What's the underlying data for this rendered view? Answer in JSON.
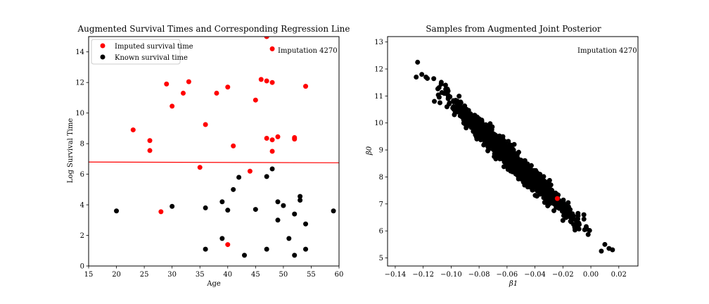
{
  "chart_data": [
    {
      "type": "scatter",
      "title": "Augmented Survival Times and Corresponding Regression Line",
      "xlabel": "Age",
      "ylabel": "Log Survival Time",
      "xlim": [
        15,
        60
      ],
      "ylim": [
        0,
        15
      ],
      "xticks": [
        15,
        20,
        25,
        30,
        35,
        40,
        45,
        50,
        55,
        60
      ],
      "yticks": [
        0,
        2,
        4,
        6,
        8,
        10,
        12,
        14
      ],
      "annotation": "Imputation 4270",
      "legend_position": "upper-left",
      "series": [
        {
          "name": "Imputed survival time",
          "color": "#ff0000",
          "points": [
            [
              23,
              8.9
            ],
            [
              26,
              8.2
            ],
            [
              26,
              7.55
            ],
            [
              28,
              3.55
            ],
            [
              29,
              11.9
            ],
            [
              30,
              10.45
            ],
            [
              32,
              11.3
            ],
            [
              33,
              12.05
            ],
            [
              35,
              6.45
            ],
            [
              36,
              9.25
            ],
            [
              38,
              11.3
            ],
            [
              40,
              11.7
            ],
            [
              40,
              1.4
            ],
            [
              41,
              7.85
            ],
            [
              44,
              6.2
            ],
            [
              45,
              10.85
            ],
            [
              46,
              12.2
            ],
            [
              47,
              12.1
            ],
            [
              47,
              8.35
            ],
            [
              47,
              15.0
            ],
            [
              48,
              12.0
            ],
            [
              48,
              8.25
            ],
            [
              48,
              7.5
            ],
            [
              48,
              14.2
            ],
            [
              49,
              8.45
            ],
            [
              52,
              8.4
            ],
            [
              52,
              8.3
            ],
            [
              54,
              11.75
            ]
          ]
        },
        {
          "name": "Known survival time",
          "color": "#000000",
          "points": [
            [
              20,
              3.6
            ],
            [
              30,
              3.9
            ],
            [
              36,
              3.8
            ],
            [
              36,
              1.1
            ],
            [
              39,
              4.2
            ],
            [
              39,
              1.8
            ],
            [
              40,
              3.65
            ],
            [
              41,
              5.0
            ],
            [
              42,
              5.8
            ],
            [
              43,
              0.7
            ],
            [
              45,
              3.7
            ],
            [
              47,
              5.85
            ],
            [
              47,
              1.1
            ],
            [
              48,
              6.35
            ],
            [
              49,
              4.2
            ],
            [
              49,
              3.0
            ],
            [
              50,
              3.95
            ],
            [
              51,
              1.8
            ],
            [
              52,
              3.4
            ],
            [
              52,
              0.7
            ],
            [
              53,
              4.55
            ],
            [
              53,
              4.3
            ],
            [
              54,
              2.75
            ],
            [
              54,
              1.1
            ],
            [
              59,
              3.6
            ]
          ]
        }
      ],
      "regression_line": {
        "color": "#ff0000",
        "x": [
          15,
          60
        ],
        "y": [
          6.8,
          6.75
        ]
      }
    },
    {
      "type": "scatter",
      "title": "Samples from Augmented Joint Posterior",
      "xlabel": "β1",
      "ylabel": "β0",
      "xlim": [
        -0.1455,
        0.0337
      ],
      "ylim": [
        4.7,
        13.2
      ],
      "xticks": [
        -0.14,
        -0.12,
        -0.1,
        -0.08,
        -0.06,
        -0.04,
        -0.02,
        0.0,
        0.02
      ],
      "xtick_labels": [
        "−0.14",
        "−0.12",
        "−0.10",
        "−0.08",
        "−0.06",
        "−0.04",
        "−0.02",
        "0.00",
        "0.02"
      ],
      "yticks": [
        5,
        6,
        7,
        8,
        9,
        10,
        11,
        12,
        13
      ],
      "annotation": "Imputation 4270",
      "samples": {
        "color": "#000000",
        "count": 1500,
        "band": {
          "x_from": -0.12,
          "x_to": 0.01,
          "y_at_x_from": 11.75,
          "y_at_x_to": 5.4,
          "spread_y": 0.28
        }
      },
      "highlight_points": [
        {
          "color": "#ff0000",
          "x": -0.024,
          "y": 7.2
        }
      ],
      "outlier_points": [
        [
          -0.124,
          12.25
        ],
        [
          -0.125,
          11.7
        ],
        [
          -0.121,
          11.8
        ],
        [
          -0.118,
          11.7
        ],
        [
          -0.117,
          11.65
        ],
        [
          -0.112,
          10.8
        ],
        [
          -0.108,
          10.75
        ],
        [
          -0.104,
          11.4
        ],
        [
          -0.102,
          10.95
        ],
        [
          -0.103,
          10.6
        ],
        [
          -0.098,
          10.5
        ],
        [
          0.0155,
          5.3
        ],
        [
          0.0075,
          5.25
        ],
        [
          0.01,
          5.5
        ],
        [
          0.013,
          5.35
        ],
        [
          -0.005,
          6.6
        ]
      ]
    }
  ]
}
